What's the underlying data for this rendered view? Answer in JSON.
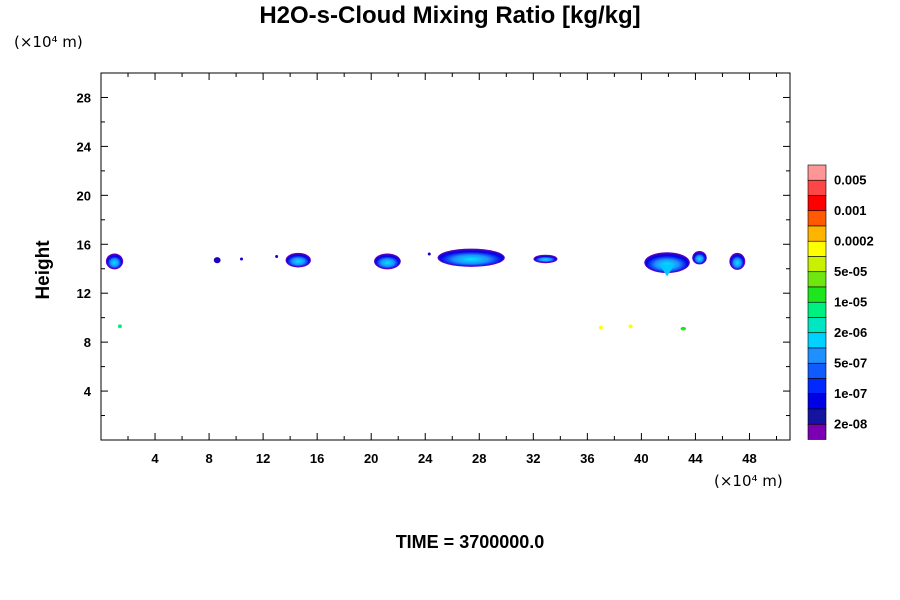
{
  "chart_data": {
    "type": "heatmap",
    "title": "H2O-s-Cloud Mixing Ratio [kg/kg]",
    "ylabel": "Height",
    "xlabel": "",
    "x_unit": "(×10⁴ m)",
    "y_unit": "(×10⁴ m)",
    "footer": "TIME = 3700000.0",
    "xlim": [
      0,
      51
    ],
    "ylim": [
      0,
      30
    ],
    "xticks": [
      4,
      8,
      12,
      16,
      20,
      24,
      28,
      32,
      36,
      40,
      44,
      48
    ],
    "yticks": [
      4,
      8,
      12,
      16,
      20,
      24,
      28
    ],
    "grid": false,
    "legend_placement": "right colorbar",
    "colorbar": {
      "colors": [
        "#7b00b4",
        "#1414a0",
        "#0000e6",
        "#0028ff",
        "#0f5bff",
        "#1e90ff",
        "#00d2ff",
        "#00e6c3",
        "#00f07f",
        "#1ee61e",
        "#6ee60f",
        "#c8f000",
        "#ffff00",
        "#ffb400",
        "#ff5a00",
        "#ff0000",
        "#ff4646",
        "#ff9696"
      ],
      "labels": [
        "2e-08",
        "1e-07",
        "5e-07",
        "2e-06",
        "1e-05",
        "5e-05",
        "0.0002",
        "0.001",
        "0.005"
      ]
    },
    "cloud_patches": [
      {
        "x": 1.0,
        "y": 14.6,
        "w": 1.1,
        "h": 1.1,
        "level": "5e-07"
      },
      {
        "x": 8.6,
        "y": 14.7,
        "w": 0.5,
        "h": 0.5,
        "level": "2e-08"
      },
      {
        "x": 10.4,
        "y": 14.8,
        "w": 0.2,
        "h": 0.2,
        "level": "2e-08"
      },
      {
        "x": 13.0,
        "y": 15.0,
        "w": 0.2,
        "h": 0.2,
        "level": "2e-08"
      },
      {
        "x": 14.6,
        "y": 14.7,
        "w": 1.7,
        "h": 1.0,
        "level": "1e-07"
      },
      {
        "x": 21.2,
        "y": 14.6,
        "w": 1.8,
        "h": 1.1,
        "level": "1e-07"
      },
      {
        "x": 24.3,
        "y": 15.2,
        "w": 0.2,
        "h": 0.2,
        "level": "2e-08"
      },
      {
        "x": 27.4,
        "y": 14.9,
        "w": 4.8,
        "h": 1.3,
        "level": "1e-07"
      },
      {
        "x": 32.9,
        "y": 14.8,
        "w": 1.6,
        "h": 0.5,
        "level": "1e-07"
      },
      {
        "x": 41.9,
        "y": 14.5,
        "w": 3.2,
        "h": 1.5,
        "level": "5e-07"
      },
      {
        "x": 44.3,
        "y": 14.9,
        "w": 0.9,
        "h": 0.9,
        "level": "1e-07"
      },
      {
        "x": 47.1,
        "y": 14.6,
        "w": 1.0,
        "h": 1.2,
        "level": "1e-07"
      },
      {
        "x": 1.4,
        "y": 9.3,
        "w": 0.3,
        "h": 0.3,
        "level": "2e-06"
      },
      {
        "x": 37.0,
        "y": 9.2,
        "w": 0.3,
        "h": 0.3,
        "level": "0.0002"
      },
      {
        "x": 39.2,
        "y": 9.3,
        "w": 0.3,
        "h": 0.3,
        "level": "0.0002"
      },
      {
        "x": 43.1,
        "y": 9.1,
        "w": 0.4,
        "h": 0.3,
        "level": "1e-05"
      }
    ]
  }
}
